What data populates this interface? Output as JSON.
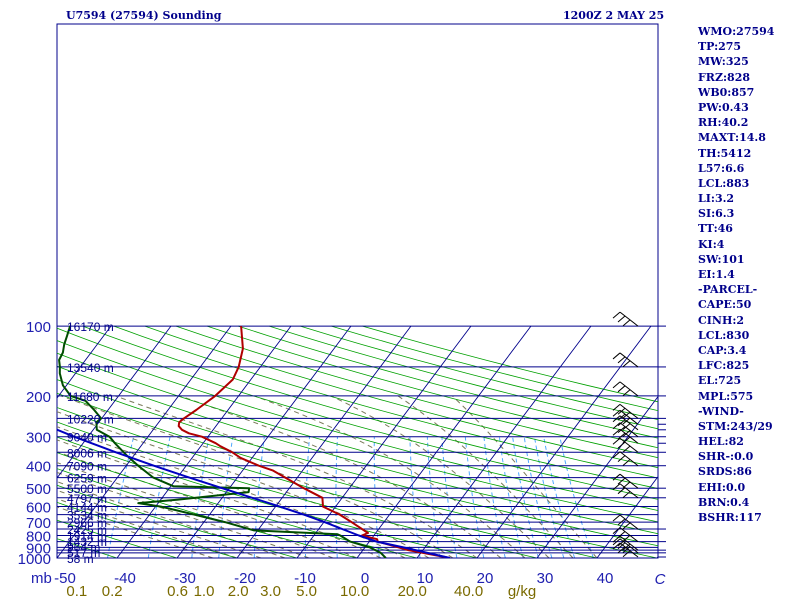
{
  "header": {
    "station": "U7594 (27594) Sounding",
    "time": "1200Z  2 MAY 25"
  },
  "stats": [
    "WMO:27594",
    "TP:275",
    "MW:325",
    "FRZ:828",
    "WB0:857",
    "PW:0.43",
    "RH:40.2",
    "MAXT:14.8",
    "TH:5412",
    "L57:6.6",
    "LCL:883",
    "LI:3.2",
    "SI:6.3",
    "TT:46",
    "KI:4",
    "SW:101",
    "EI:1.4",
    "-PARCEL-",
    "CAPE:50",
    "CINH:2",
    "LCL:830",
    "CAP:3.4",
    "LFC:825",
    "EL:725",
    "MPL:575",
    "-WIND-",
    "STM:243/29",
    "HEL:82",
    "SHR-:0.0",
    "SRDS:86",
    "EHI:0.0",
    "BRN:0.4",
    "BSHR:117"
  ],
  "colors": {
    "frame": "#00008b",
    "isobar": "#00008b",
    "isotherm": "#00008b",
    "dry_adiabat": "#00a000",
    "moist_adiabat": "#7a7a5a",
    "mixing_ratio": "#4fa8ff",
    "temperature": "#b00000",
    "dewpoint": "#004d00",
    "parcel": "#0000c0",
    "axis_text": "#2020b0",
    "mixing_text": "#7a6a00"
  },
  "chart_data": {
    "type": "line",
    "title": "",
    "xlabel": "C",
    "ylabel": "mb",
    "y_scale": "log",
    "xlim": [
      -50,
      50
    ],
    "ylim": [
      1000,
      100
    ],
    "x_ticks": [
      -50,
      -40,
      -30,
      -20,
      -10,
      0,
      10,
      20,
      30,
      40
    ],
    "x_tick_labels": [
      "-50",
      "-40",
      "-30",
      "-20",
      "-10",
      "0",
      "10",
      "20",
      "30",
      "40"
    ],
    "y_ticks": [
      1000,
      900,
      800,
      700,
      600,
      500,
      400,
      300,
      200,
      100
    ],
    "y_tick_labels": [
      "1000",
      "900",
      "800",
      "700",
      "600",
      "500",
      "400",
      "300",
      "200",
      "100"
    ],
    "mixing_ratio_labels": [
      {
        "t": -46.7,
        "label": "0.1"
      },
      {
        "t": -40.8,
        "label": "0.2"
      },
      {
        "t": -29.9,
        "label": "0.6"
      },
      {
        "t": -25.5,
        "label": "1.0"
      },
      {
        "t": -19.8,
        "label": "2.0"
      },
      {
        "t": -14.4,
        "label": "3.0"
      },
      {
        "t": -8.4,
        "label": "5.0"
      },
      {
        "t": -0.4,
        "label": "10.0"
      },
      {
        "t": 9.2,
        "label": "20.0"
      },
      {
        "t": 18.6,
        "label": "40.0"
      },
      {
        "t": 27.5,
        "label": "g/kg"
      }
    ],
    "height_labels": [
      {
        "p": 1000,
        "label": "58 m"
      },
      {
        "p": 940,
        "label": "517 m"
      },
      {
        "p": 890,
        "label": "964 m"
      },
      {
        "p": 845,
        "label": "1432 m"
      },
      {
        "p": 800,
        "label": "1914 m"
      },
      {
        "p": 750,
        "label": "2425 m"
      },
      {
        "p": 700,
        "label": "2966 m"
      },
      {
        "p": 650,
        "label": "3534 m"
      },
      {
        "p": 600,
        "label": "4144 m"
      },
      {
        "p": 550,
        "label": "4797 m"
      },
      {
        "p": 500,
        "label": "5500 m"
      },
      {
        "p": 450,
        "label": "6259 m"
      },
      {
        "p": 400,
        "label": "7090 m"
      },
      {
        "p": 350,
        "label": "8006 m"
      },
      {
        "p": 300,
        "label": "9040 m"
      },
      {
        "p": 250,
        "label": "10220 m"
      },
      {
        "p": 200,
        "label": "11680 m"
      },
      {
        "p": 150,
        "label": "13540 m"
      },
      {
        "p": 100,
        "label": "16170 m"
      }
    ],
    "series": [
      {
        "key": "temperature",
        "points": [
          [
            1000,
            15.5
          ],
          [
            925,
            7.6
          ],
          [
            850,
            1.4
          ],
          [
            830,
            1.0
          ],
          [
            800,
            -2.0
          ],
          [
            780,
            -1.3
          ],
          [
            700,
            -5.4
          ],
          [
            650,
            -8.3
          ],
          [
            600,
            -12.1
          ],
          [
            550,
            -13.3
          ],
          [
            500,
            -17.6
          ],
          [
            450,
            -22.0
          ],
          [
            420,
            -24.9
          ],
          [
            400,
            -27.9
          ],
          [
            370,
            -31.9
          ],
          [
            350,
            -34.0
          ],
          [
            330,
            -36.7
          ],
          [
            320,
            -37.9
          ],
          [
            300,
            -41.0
          ],
          [
            290,
            -43.6
          ],
          [
            280,
            -45.2
          ],
          [
            270,
            -46.2
          ],
          [
            260,
            -46.6
          ],
          [
            250,
            -46.3
          ],
          [
            230,
            -45.3
          ],
          [
            200,
            -43.9
          ],
          [
            170,
            -43.0
          ],
          [
            150,
            -43.6
          ],
          [
            125,
            -45.2
          ],
          [
            100,
            -48.3
          ]
        ]
      },
      {
        "key": "dewpoint",
        "points": [
          [
            1000,
            4.8
          ],
          [
            950,
            3.3
          ],
          [
            900,
            0.8
          ],
          [
            850,
            -3.2
          ],
          [
            800,
            -5.6
          ],
          [
            790,
            -6.2
          ],
          [
            760,
            -20.6
          ],
          [
            700,
            -26.5
          ],
          [
            650,
            -32.5
          ],
          [
            600,
            -39.1
          ],
          [
            580,
            -43.3
          ],
          [
            560,
            -37.1
          ],
          [
            540,
            -31.7
          ],
          [
            520,
            -26.3
          ],
          [
            500,
            -26.7
          ],
          [
            490,
            -39.6
          ],
          [
            450,
            -44.0
          ],
          [
            400,
            -48.0
          ],
          [
            360,
            -51.3
          ],
          [
            320,
            -54.7
          ],
          [
            300,
            -56.4
          ],
          [
            280,
            -59.4
          ],
          [
            260,
            -60.4
          ],
          [
            250,
            -60.1
          ],
          [
            230,
            -62.3
          ],
          [
            210,
            -64.9
          ],
          [
            200,
            -68.0
          ],
          [
            180,
            -70.6
          ],
          [
            160,
            -72.6
          ],
          [
            150,
            -73.4
          ],
          [
            140,
            -74.4
          ],
          [
            130,
            -74.7
          ],
          [
            120,
            -75.5
          ],
          [
            110,
            -76.1
          ],
          [
            100,
            -76.8
          ]
        ]
      },
      {
        "key": "parcel",
        "points": [
          [
            1000,
            15.5
          ],
          [
            900,
            6.4
          ],
          [
            850,
            1.2
          ],
          [
            800,
            -2.5
          ],
          [
            750,
            -6.1
          ],
          [
            700,
            -9.9
          ],
          [
            650,
            -14.3
          ],
          [
            600,
            -19.3
          ],
          [
            550,
            -25.0
          ],
          [
            500,
            -31.2
          ],
          [
            450,
            -38.0
          ],
          [
            400,
            -45.4
          ],
          [
            350,
            -53.4
          ],
          [
            300,
            -62.3
          ],
          [
            250,
            -72.0
          ],
          [
            200,
            -83.0
          ],
          [
            150,
            -95.5
          ],
          [
            125,
            -102.8
          ],
          [
            115,
            -106.5
          ]
        ]
      }
    ]
  }
}
